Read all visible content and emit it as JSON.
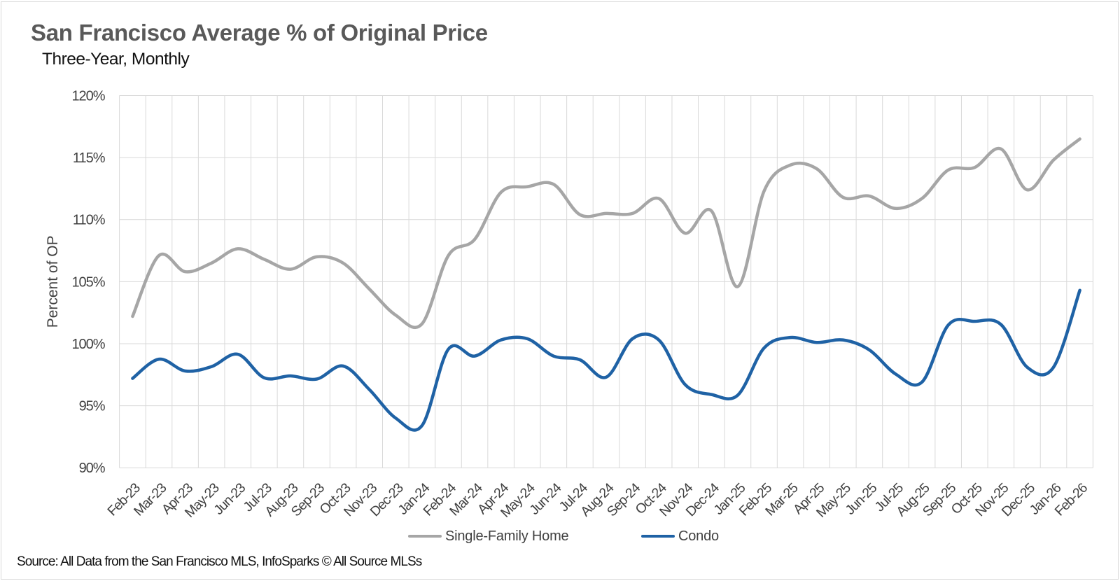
{
  "title": "San Francisco Average % of Original Price",
  "subtitle": "Three-Year, Monthly",
  "source_note": "Source: All Data from the San Francisco MLS, InfoSparks © All Source MLSs",
  "colors": {
    "single_family": "#a6a6a6",
    "condo": "#1f62a5",
    "gridline": "#d9d9d9",
    "axis_text": "#404040",
    "title_text": "#595959",
    "frame_border": "#d9d9d9"
  },
  "chart_data": {
    "type": "line",
    "title": "San Francisco Average % of Original Price",
    "subtitle": "Three-Year, Monthly",
    "xlabel": "",
    "ylabel": "Percent of OP",
    "ylim": [
      90,
      120
    ],
    "ytick_step": 5,
    "ytick_suffix": "%",
    "ytick_labels": [
      "90%",
      "95%",
      "100%",
      "105%",
      "110%",
      "115%",
      "120%"
    ],
    "grid": "both",
    "smooth": true,
    "legend_position": "bottom",
    "categories": [
      "Feb-23",
      "Mar-23",
      "Apr-23",
      "May-23",
      "Jun-23",
      "Jul-23",
      "Aug-23",
      "Sep-23",
      "Oct-23",
      "Nov-23",
      "Dec-23",
      "Jan-24",
      "Feb-24",
      "Mar-24",
      "Apr-24",
      "May-24",
      "Jun-24",
      "Jul-24",
      "Aug-24",
      "Sep-24",
      "Oct-24",
      "Nov-24",
      "Dec-24",
      "Jan-25",
      "Feb-25",
      "Mar-25",
      "Apr-25",
      "May-25",
      "Jun-25",
      "Jul-25",
      "Aug-25",
      "Sep-25",
      "Oct-25",
      "Nov-25",
      "Dec-25",
      "Jan-26",
      "Feb-26"
    ],
    "series": [
      {
        "name": "Single-Family Home",
        "color": "#a6a6a6",
        "values": [
          102.2,
          107.1,
          105.8,
          106.5,
          107.65,
          106.8,
          106.0,
          107.0,
          106.5,
          104.4,
          102.3,
          101.6,
          107.1,
          108.4,
          112.2,
          112.65,
          112.85,
          110.4,
          110.5,
          110.5,
          111.7,
          108.9,
          110.7,
          104.6,
          112.3,
          114.4,
          114.1,
          111.8,
          111.9,
          110.9,
          111.7,
          114.0,
          114.2,
          115.7,
          112.4,
          114.8,
          116.5
        ]
      },
      {
        "name": "Condo",
        "color": "#1f62a5",
        "values": [
          97.2,
          98.75,
          97.8,
          98.15,
          99.15,
          97.25,
          97.4,
          97.15,
          98.2,
          96.3,
          94.0,
          93.4,
          99.55,
          99.0,
          100.3,
          100.4,
          99.0,
          98.7,
          97.3,
          100.4,
          100.3,
          96.7,
          95.9,
          95.85,
          99.65,
          100.5,
          100.1,
          100.3,
          99.5,
          97.55,
          96.9,
          101.5,
          101.8,
          101.55,
          98.1,
          98.1,
          104.3
        ]
      }
    ]
  }
}
